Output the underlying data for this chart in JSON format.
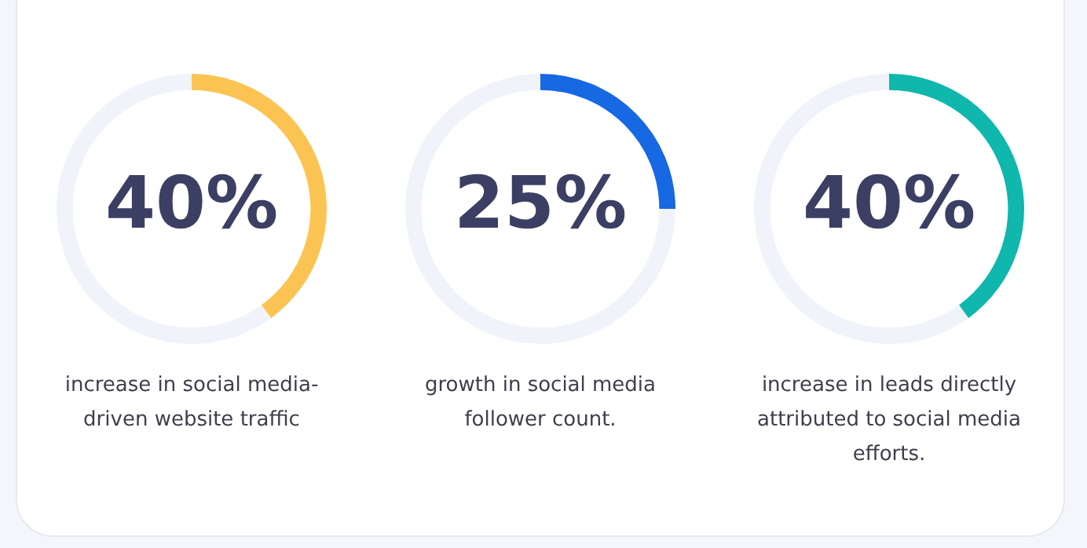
{
  "chart_data": [
    {
      "type": "donut",
      "categories": [
        null,
        null
      ],
      "values": [
        40,
        60
      ],
      "colors": [
        "#fbc452",
        "#f0f3fa"
      ],
      "annotations": [
        "40%"
      ],
      "title": "increase in social media-driven website traffic"
    },
    {
      "type": "donut",
      "categories": [
        null,
        null
      ],
      "values": [
        25,
        75
      ],
      "colors": [
        "#1668e3",
        "#f0f3fa"
      ],
      "annotations": [
        "25%"
      ],
      "title": "growth in social media follower count."
    },
    {
      "type": "donut",
      "categories": [
        null,
        null
      ],
      "values": [
        40,
        60
      ],
      "colors": [
        "#0fb7ad",
        "#f0f3fa"
      ],
      "annotations": [
        "40%"
      ],
      "title": "increase in leads directly attributed to social media efforts."
    }
  ]
}
